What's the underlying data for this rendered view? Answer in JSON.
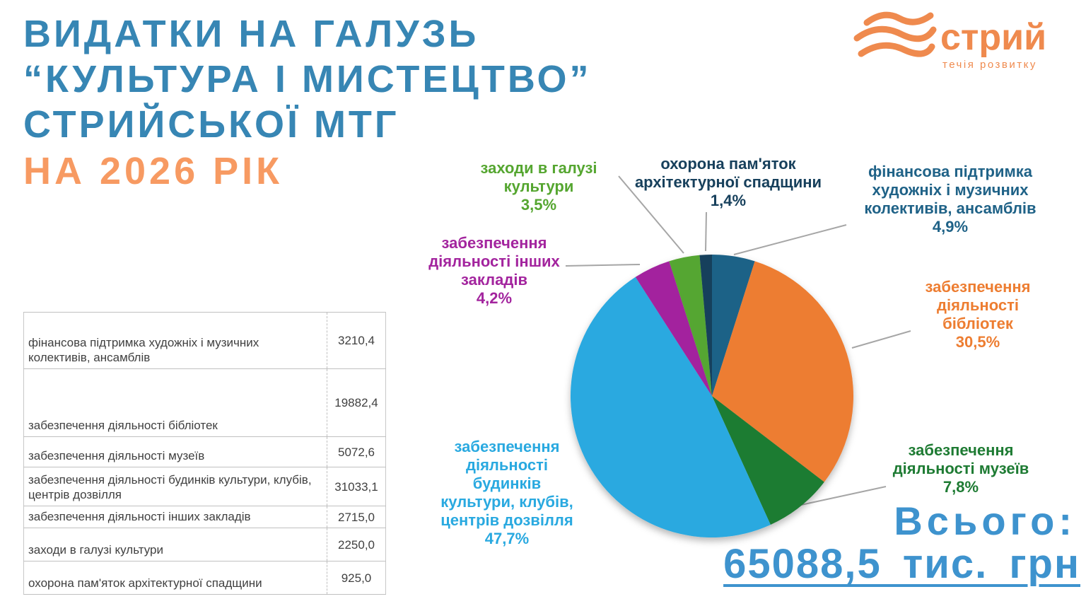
{
  "title": {
    "line1": "ВИДАТКИ НА ГАЛУЗЬ",
    "line2": "“КУЛЬТУРА І МИСТЕЦТВО”",
    "line3": "СТРИЙСЬКОЇ МТГ",
    "subtitle": "НА 2026 РІК"
  },
  "logo": {
    "name": "стрий",
    "tagline": "течія розвитку",
    "color": "#EF8A4E"
  },
  "table": {
    "rows": [
      {
        "label": "фінансова підтримка художніх і музичних колективів, ансамблів",
        "value": "3210,4"
      },
      {
        "label": "забезпечення діяльності бібліотек",
        "value": "19882,4"
      },
      {
        "label": "забезпечення діяльності музеїв",
        "value": "5072,6"
      },
      {
        "label": "забезпечення діяльності будинків культури, клубів, центрів дозвілля",
        "value": "31033,1"
      },
      {
        "label": "забезпечення діяльності інших закладів",
        "value": "2715,0"
      },
      {
        "label": "заходи в галузі культури",
        "value": "2250,0"
      },
      {
        "label": "охорона пам'яток архітектурної спадщини",
        "value": "925,0"
      }
    ]
  },
  "total": {
    "label": "Всього:",
    "value": "65088,5 тис. грн"
  },
  "colors": {
    "title_blue": "#3786B4",
    "subtitle_orange": "#F79A62",
    "total_blue": "#3E93CE",
    "leader_gray": "#A6A6A6"
  },
  "chart_data": {
    "type": "pie",
    "title": "Видатки на галузь “Культура і мистецтво” Стрийської МТГ на 2026 рік",
    "unit": "тис. грн",
    "total": 65088.5,
    "legend_position": "outside-callouts",
    "start_angle": "12 o'clock, clockwise",
    "slices": [
      {
        "label": "фінансова підтримка художніх і музичних колективів, ансамблів",
        "value": 3210.4,
        "pct": 4.9,
        "pct_label": "4,9%",
        "color": "#1F6287",
        "callout": "фінансова підтримка\nхудожніх і музичних\nколективів, ансамблів"
      },
      {
        "label": "забезпечення діяльності бібліотек",
        "value": 19882.4,
        "pct": 30.5,
        "pct_label": "30,5%",
        "color": "#ED7D31",
        "callout": "забезпечення\nдіяльності\nбібліотек"
      },
      {
        "label": "забезпечення діяльності музеїв",
        "value": 5072.6,
        "pct": 7.8,
        "pct_label": "7,8%",
        "color": "#1E7B33",
        "callout": "забезпечення\nдіяльності музеїв"
      },
      {
        "label": "забезпечення діяльності будинків культури, клубів, центрів дозвілля",
        "value": 31033.1,
        "pct": 47.7,
        "pct_label": "47,7%",
        "color": "#29A9E0",
        "callout": "забезпечення\nдіяльності\nбудинків\nкультури, клубів,\nцентрів дозвілля"
      },
      {
        "label": "забезпечення діяльності інших закладів",
        "value": 2715.0,
        "pct": 4.2,
        "pct_label": "4,2%",
        "color": "#A3249E",
        "callout": "забезпечення\nдіяльності інших\nзакладів"
      },
      {
        "label": "заходи в галузі культури",
        "value": 2250.0,
        "pct": 3.5,
        "pct_label": "3,5%",
        "color": "#55A630",
        "callout": "заходи в галузі\nкультури"
      },
      {
        "label": "охорона пам'яток архітектурної спадщини",
        "value": 925.0,
        "pct": 1.4,
        "pct_label": "1,4%",
        "color": "#17405C",
        "callout": "охорона пам'яток\nархітектурної спадщини"
      }
    ]
  }
}
